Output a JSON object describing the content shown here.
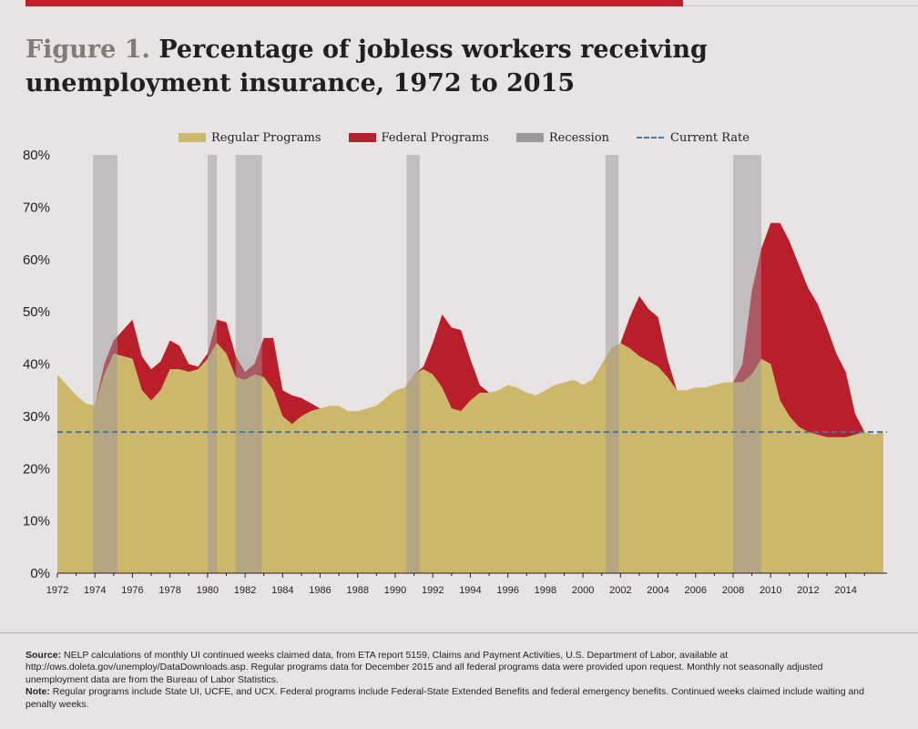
{
  "figure": {
    "label": "Figure 1.",
    "title_line1": "Percentage of jobless workers receiving",
    "title_line2": "unemployment insurance, 1972 to 2015"
  },
  "legend": {
    "regular": "Regular Programs",
    "federal": "Federal Programs",
    "recession": "Recession",
    "current": "Current Rate"
  },
  "colors": {
    "regular": "#cdb76a",
    "federal": "#b81f2a",
    "recession": "#9d969c",
    "current_rate": "#3f78a6",
    "background": "#e8e4e4"
  },
  "chart_data": {
    "type": "area",
    "x_unit": "year",
    "xlim": [
      1972,
      2016.2
    ],
    "ylim": [
      0,
      80
    ],
    "y_ticks": [
      0,
      10,
      20,
      30,
      40,
      50,
      60,
      70,
      80
    ],
    "y_tick_labels": [
      "0%",
      "10%",
      "20%",
      "30%",
      "40%",
      "50%",
      "60%",
      "70%",
      "80%"
    ],
    "x_ticks": [
      1972,
      1974,
      1976,
      1978,
      1980,
      1982,
      1984,
      1986,
      1988,
      1990,
      1992,
      1994,
      1996,
      1998,
      2000,
      2002,
      2004,
      2006,
      2008,
      2010,
      2012,
      2014
    ],
    "x_tick_labels": [
      "1972",
      "1974",
      "1976",
      "1978",
      "1980",
      "1982",
      "1984",
      "1986",
      "1988",
      "1990",
      "1992",
      "1994",
      "1996",
      "1998",
      "2000",
      "2002",
      "2004",
      "2006",
      "2008",
      "2010",
      "2012",
      "2014"
    ],
    "current_rate": 27,
    "recessions": [
      [
        1973.9,
        1975.2
      ],
      [
        1980.0,
        1980.5
      ],
      [
        1981.5,
        1982.9
      ],
      [
        1990.6,
        1991.3
      ],
      [
        2001.2,
        2001.9
      ],
      [
        2008.0,
        2009.5
      ]
    ],
    "series": [
      {
        "name": "Regular Programs",
        "x": [
          1972,
          1972.5,
          1973,
          1973.5,
          1974,
          1974.5,
          1975,
          1975.5,
          1976,
          1976.5,
          1977,
          1977.5,
          1978,
          1978.5,
          1979,
          1979.5,
          1980,
          1980.5,
          1981,
          1981.5,
          1982,
          1982.5,
          1983,
          1983.5,
          1984,
          1984.5,
          1985,
          1985.5,
          1986,
          1986.5,
          1987,
          1987.5,
          1988,
          1988.5,
          1989,
          1989.5,
          1990,
          1990.5,
          1991,
          1991.5,
          1992,
          1992.5,
          1993,
          1993.5,
          1994,
          1994.5,
          1995,
          1995.5,
          1996,
          1996.5,
          1997,
          1997.5,
          1998,
          1998.5,
          1999,
          1999.5,
          2000,
          2000.5,
          2001,
          2001.5,
          2002,
          2002.5,
          2003,
          2003.5,
          2004,
          2004.5,
          2005,
          2005.5,
          2006,
          2006.5,
          2007,
          2007.5,
          2008,
          2008.5,
          2009,
          2009.5,
          2010,
          2010.5,
          2011,
          2011.5,
          2012,
          2012.5,
          2013,
          2013.5,
          2014,
          2014.5,
          2015,
          2015.5,
          2016
        ],
        "values": [
          38,
          36,
          34,
          32.5,
          32,
          38,
          42,
          41.5,
          41,
          35,
          33,
          35,
          39,
          39,
          38.5,
          39,
          41,
          44,
          42,
          37.5,
          37,
          38,
          37.5,
          35,
          30,
          28.5,
          30,
          31,
          31.5,
          32,
          32,
          31,
          31,
          31.5,
          32,
          33.5,
          35,
          35.5,
          38,
          39,
          38,
          35.5,
          31.5,
          31,
          33,
          34.5,
          34.5,
          35,
          36,
          35.5,
          34.5,
          34,
          35,
          36,
          36.5,
          37,
          36,
          37,
          40,
          43,
          44,
          43,
          41.5,
          40.5,
          39.5,
          37.5,
          35,
          35,
          35.5,
          35.5,
          36,
          36.5,
          36.5,
          36.5,
          38,
          41,
          40,
          33,
          30,
          28,
          27,
          26.5,
          26,
          26,
          26,
          26.5,
          27,
          26.5,
          27
        ]
      },
      {
        "name": "Federal Programs",
        "x": [
          1972,
          1972.5,
          1973,
          1973.5,
          1974,
          1974.5,
          1975,
          1975.5,
          1976,
          1976.5,
          1977,
          1977.5,
          1978,
          1978.5,
          1979,
          1979.5,
          1980,
          1980.5,
          1981,
          1981.5,
          1982,
          1982.5,
          1983,
          1983.5,
          1984,
          1984.5,
          1985,
          1985.5,
          1986,
          1986.5,
          1987,
          1987.5,
          1988,
          1988.5,
          1989,
          1989.5,
          1990,
          1990.5,
          1991,
          1991.5,
          1992,
          1992.5,
          1993,
          1993.5,
          1994,
          1994.5,
          1995,
          1995.5,
          1996,
          1996.5,
          1997,
          1997.5,
          1998,
          1998.5,
          1999,
          1999.5,
          2000,
          2000.5,
          2001,
          2001.5,
          2002,
          2002.5,
          2003,
          2003.5,
          2004,
          2004.5,
          2005,
          2005.5,
          2006,
          2006.5,
          2007,
          2007.5,
          2008,
          2008.5,
          2009,
          2009.5,
          2010,
          2010.5,
          2011,
          2011.5,
          2012,
          2012.5,
          2013,
          2013.5,
          2014,
          2014.5,
          2015,
          2015.5,
          2016
        ],
        "values": [
          0,
          0,
          0,
          0,
          0,
          2,
          2.5,
          5,
          7.5,
          6.5,
          6,
          5.5,
          5.5,
          4.5,
          1.5,
          0.5,
          1,
          4.5,
          6,
          4,
          1.5,
          2,
          7.5,
          10,
          5,
          5.5,
          3.5,
          1.5,
          0,
          0,
          0,
          0,
          0,
          0,
          0,
          0,
          0,
          0,
          0,
          0.5,
          6,
          14,
          15.5,
          15.5,
          8,
          1.5,
          0,
          0,
          0,
          0,
          0,
          0,
          0,
          0,
          0,
          0,
          0,
          0,
          0,
          0,
          0,
          6,
          11.5,
          10,
          9.5,
          3.5,
          0,
          0,
          0,
          0,
          0,
          0,
          0,
          3.5,
          16,
          21,
          27,
          34,
          33.5,
          31,
          27.5,
          25,
          21,
          16,
          12.5,
          4,
          0,
          0,
          0
        ]
      }
    ]
  },
  "footnotes": {
    "source_label": "Source:",
    "source_text": " NELP calculations of monthly UI continued weeks claimed data, from ETA report 5159, Claims and Payment Activities, U.S. Department of Labor, available at http://ows.doleta.gov/unemploy/DataDownloads.asp. Regular programs data for December 2015 and all federal programs data were provided upon request. Monthly not seasonally adjusted unemployment data are from the Bureau of Labor Statistics.",
    "note_label": "Note:",
    "note_text": " Regular programs include State UI, UCFE, and UCX. Federal programs include Federal-State Extended Benefits and federal emergency benefits. Continued weeks claimed include waiting and penalty weeks."
  }
}
